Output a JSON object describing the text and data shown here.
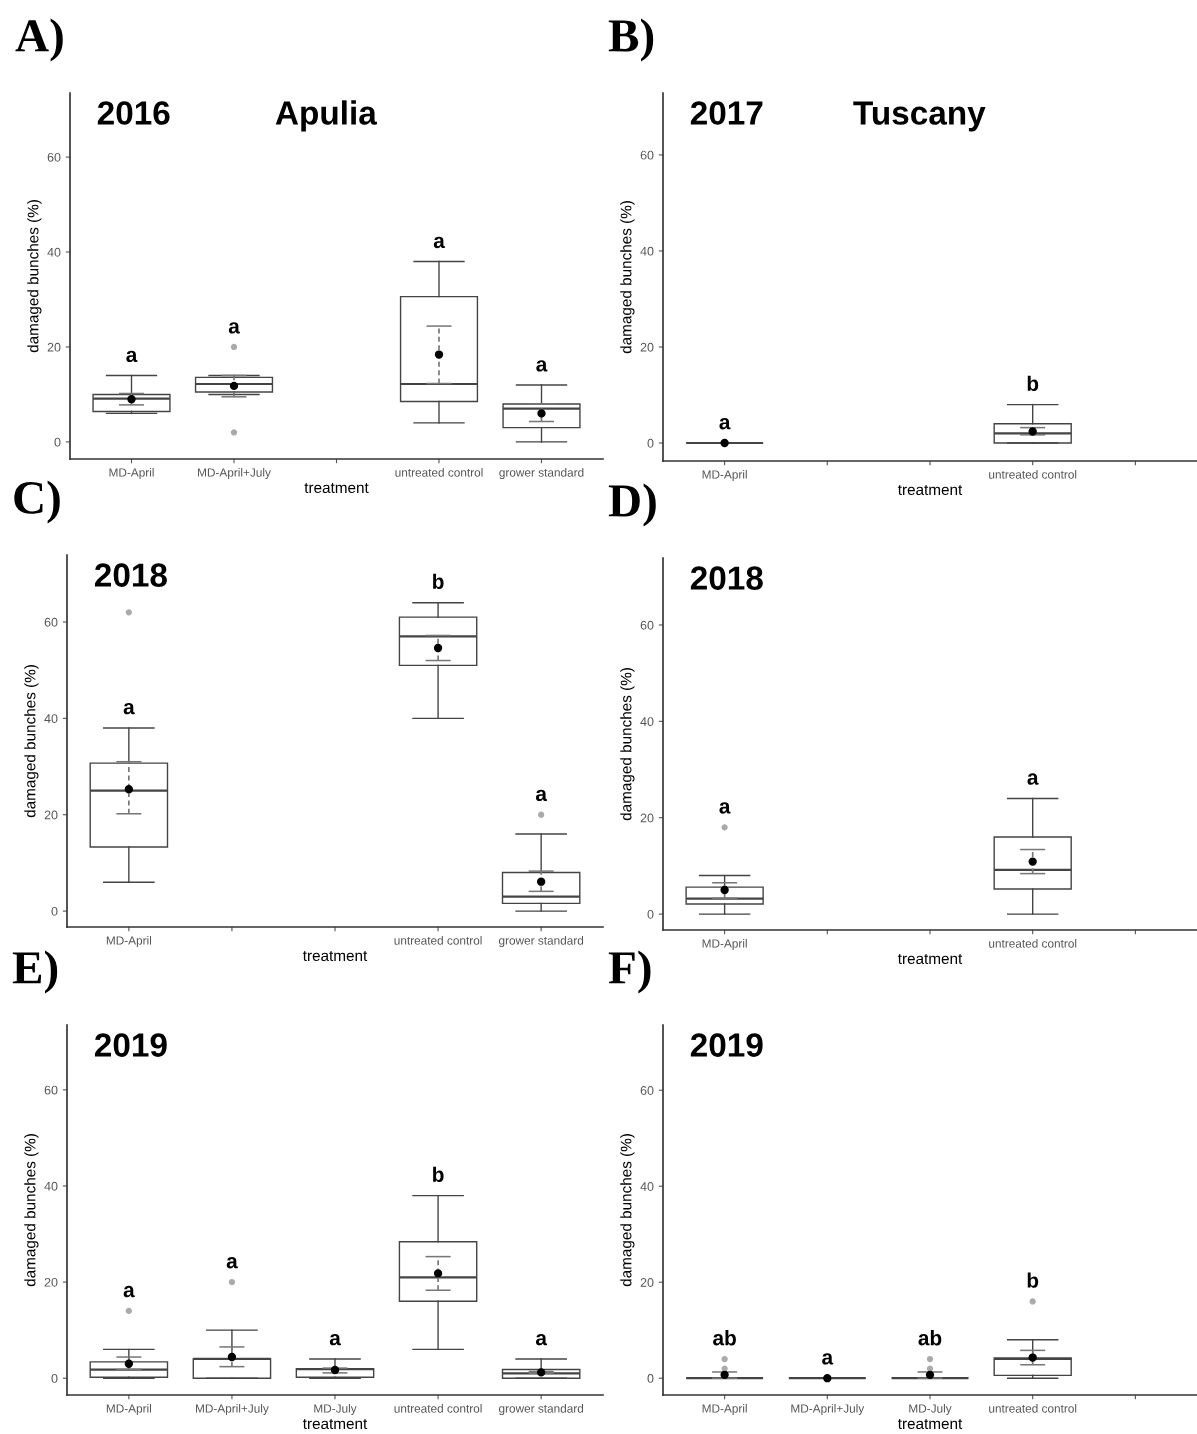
{
  "chart_data": [
    {
      "type": "box",
      "title": "A)",
      "subtitle": "2016",
      "xlabel": "treatment",
      "ylabel": "damaged bunches (%)",
      "categories": [
        "MD-April",
        "MD-April+July",
        null,
        "untreated control",
        "grower standard"
      ],
      "ylim": [
        -3.6,
        73.5
      ],
      "yticks": [
        0,
        20,
        40,
        60
      ],
      "boxes": [
        {
          "low": 6,
          "q1": 6.4,
          "median": 9.1,
          "q3": 10,
          "high": 14
        },
        {
          "low": 10,
          "q1": 10.5,
          "median": 12.2,
          "q3": 13.6,
          "high": 14,
          "outliers": [
            20,
            2
          ]
        },
        null,
        {
          "low": 4,
          "q1": 8.5,
          "median": 12.2,
          "q3": 30.6,
          "high": 38
        },
        {
          "low": 0,
          "q1": 3,
          "median": 7,
          "q3": 8,
          "high": 12
        }
      ],
      "series": [
        {
          "type": "scatter",
          "color": "#000000",
          "marker": "circle",
          "line_style": "dashed",
          "values": [
            9,
            11.8,
            null,
            18.4,
            6
          ],
          "errors": [
            [
              7.8,
              10.2
            ],
            [
              9.5,
              14
            ],
            null,
            [
              12.3,
              24.4
            ],
            [
              4.3,
              8
            ]
          ]
        }
      ],
      "annotations": [
        "Apulia",
        "a",
        "a",
        "a",
        "a"
      ]
    },
    {
      "type": "box",
      "title": "B)",
      "subtitle": "2017",
      "xlabel": "treatment",
      "ylabel": "damaged bunches (%)",
      "categories": [
        "MD-April",
        null,
        null,
        "untreated control",
        null
      ],
      "ylim": [
        -3.75,
        72.9
      ],
      "yticks": [
        0,
        20,
        40,
        60
      ],
      "boxes": [
        {
          "low": 0,
          "q1": 0,
          "median": 0,
          "q3": 0,
          "high": 0
        },
        null,
        null,
        {
          "low": 0,
          "q1": 0,
          "median": 2,
          "q3": 4,
          "high": 8
        },
        null
      ],
      "series": [
        {
          "type": "scatter",
          "color": "#000000",
          "marker": "circle",
          "line_style": "dashed",
          "values": [
            0,
            null,
            null,
            2.4,
            null
          ],
          "errors": [
            null,
            null,
            null,
            [
              1.7,
              3.2
            ],
            null
          ]
        }
      ],
      "annotations": [
        "Tuscany",
        "a",
        "b"
      ]
    },
    {
      "type": "box",
      "title": "C)",
      "subtitle": "2018",
      "xlabel": "treatment",
      "ylabel": "damaged bunches (%)",
      "categories": [
        "MD-April",
        null,
        null,
        "untreated control",
        "grower standard"
      ],
      "ylim": [
        -3.3,
        73.9
      ],
      "yticks": [
        0,
        20,
        40,
        60
      ],
      "boxes": [
        {
          "low": 6,
          "q1": 13.3,
          "median": 25,
          "q3": 30.7,
          "high": 38,
          "outliers": [
            62
          ]
        },
        null,
        null,
        {
          "low": 40,
          "q1": 51,
          "median": 57,
          "q3": 61,
          "high": 64
        },
        {
          "low": 0,
          "q1": 1.6,
          "median": 3,
          "q3": 8,
          "high": 16,
          "outliers": [
            20
          ]
        }
      ],
      "series": [
        {
          "type": "scatter",
          "color": "#000000",
          "marker": "circle",
          "line_style": "dashed",
          "values": [
            25.3,
            null,
            null,
            54.6,
            6.1
          ],
          "errors": [
            [
              20.2,
              31
            ],
            null,
            null,
            [
              52,
              57.2
            ],
            [
              4.1,
              8.3
            ]
          ]
        }
      ],
      "annotations": [
        "a",
        "b",
        "a"
      ]
    },
    {
      "type": "box",
      "title": "D)",
      "subtitle": "2018",
      "xlabel": "treatment",
      "ylabel": "damaged bunches (%)",
      "categories": [
        "MD-April",
        null,
        null,
        "untreated control",
        null
      ],
      "ylim": [
        -3.3,
        73.9
      ],
      "yticks": [
        0,
        20,
        40,
        60
      ],
      "boxes": [
        {
          "low": 0,
          "q1": 2.1,
          "median": 3.2,
          "q3": 5.6,
          "high": 8,
          "outliers": [
            18
          ]
        },
        null,
        null,
        {
          "low": 0,
          "q1": 5.2,
          "median": 9.2,
          "q3": 16,
          "high": 24
        },
        null
      ],
      "series": [
        {
          "type": "scatter",
          "color": "#000000",
          "marker": "circle",
          "line_style": "dashed",
          "values": [
            5,
            null,
            null,
            10.9,
            null
          ],
          "errors": [
            [
              3.3,
              6.5
            ],
            null,
            null,
            [
              8.4,
              13.4
            ],
            null
          ]
        }
      ],
      "annotations": [
        "a",
        "a"
      ]
    },
    {
      "type": "box",
      "title": "E)",
      "subtitle": "2019",
      "xlabel": "treatment",
      "ylabel": "damaged bunches (%)",
      "categories": [
        "MD-April",
        "MD-April+July",
        "MD-July",
        "untreated control",
        "grower standard"
      ],
      "ylim": [
        -3.5,
        73.5
      ],
      "yticks": [
        0,
        20,
        40,
        60
      ],
      "boxes": [
        {
          "low": 0,
          "q1": 0.2,
          "median": 1.8,
          "q3": 3.4,
          "high": 6,
          "outliers": [
            14
          ]
        },
        {
          "low": 0,
          "q1": 0,
          "median": 4,
          "q3": 4,
          "high": 10,
          "outliers": [
            20
          ]
        },
        {
          "low": 0,
          "q1": 0.2,
          "median": 1.9,
          "q3": 2,
          "high": 4
        },
        {
          "low": 6,
          "q1": 16,
          "median": 21,
          "q3": 28.4,
          "high": 38
        },
        {
          "low": 0,
          "q1": 0,
          "median": 1,
          "q3": 1.8,
          "high": 4
        }
      ],
      "series": [
        {
          "type": "scatter",
          "color": "#000000",
          "marker": "circle",
          "line_style": "dashed",
          "values": [
            3,
            4.4,
            1.7,
            21.8,
            1.2
          ],
          "errors": [
            [
              1.8,
              4.4
            ],
            [
              2.4,
              6.5
            ],
            [
              1.1,
              2.1
            ],
            [
              18.3,
              25.3
            ],
            [
              1,
              1.4
            ]
          ]
        }
      ],
      "annotations": [
        "a",
        "a",
        "a",
        "b",
        "a"
      ]
    },
    {
      "type": "box",
      "title": "F)",
      "subtitle": "2019",
      "xlabel": "treatment",
      "ylabel": "damaged bunches (%)",
      "categories": [
        "MD-April",
        "MD-April+July",
        "MD-July",
        "untreated control",
        null
      ],
      "ylim": [
        -3.5,
        73.6
      ],
      "yticks": [
        0,
        20,
        40,
        60
      ],
      "boxes": [
        {
          "low": 0,
          "q1": 0,
          "median": 0,
          "q3": 0,
          "high": 0,
          "outliers": [
            4,
            2
          ]
        },
        {
          "low": 0,
          "q1": 0,
          "median": 0,
          "q3": 0,
          "high": 0
        },
        {
          "low": 0,
          "q1": 0,
          "median": 0,
          "q3": 0,
          "high": 0,
          "outliers": [
            4,
            2
          ]
        },
        {
          "low": 0,
          "q1": 0.6,
          "median": 4,
          "q3": 4.2,
          "high": 8,
          "outliers": [
            16
          ]
        },
        null
      ],
      "series": [
        {
          "type": "scatter",
          "color": "#000000",
          "marker": "circle",
          "line_style": "dashed",
          "values": [
            0.7,
            0,
            0.7,
            4.3,
            null
          ],
          "errors": [
            [
              0,
              1.3
            ],
            null,
            [
              0,
              1.3
            ],
            [
              2.8,
              5.8
            ],
            null
          ]
        }
      ],
      "annotations": [
        "ab",
        "a",
        "ab",
        "b"
      ]
    }
  ]
}
